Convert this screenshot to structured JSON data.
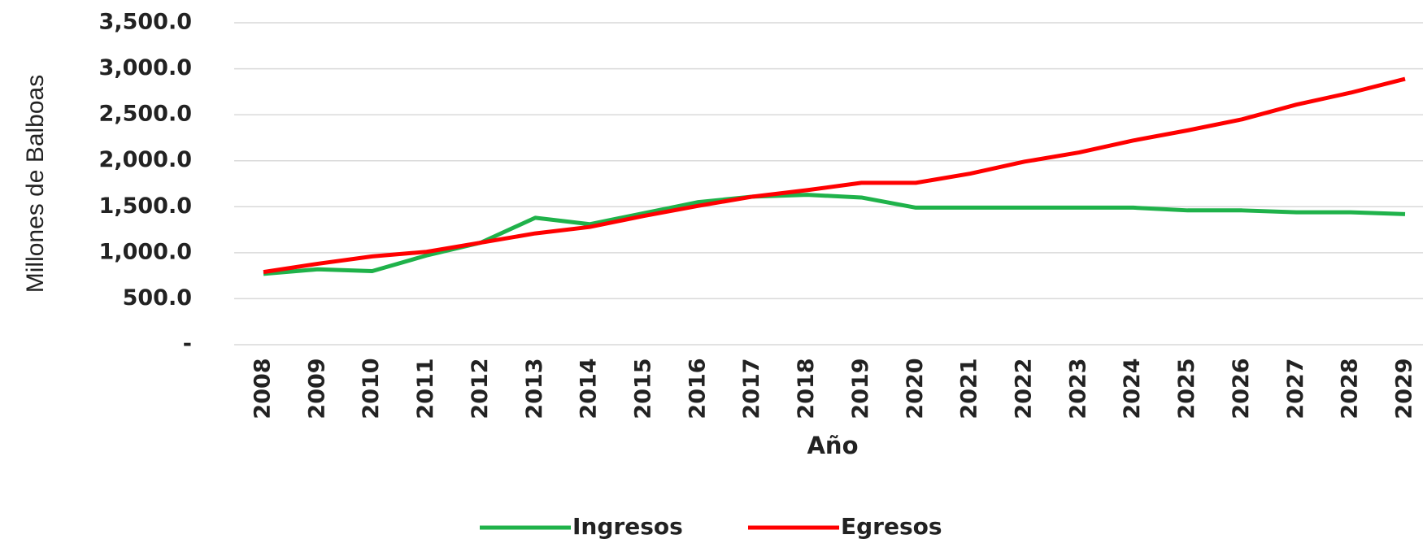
{
  "chart_data": {
    "type": "line",
    "y_axis_label": "Millones de Balboas",
    "x_axis_label": "Año",
    "categories": [
      "2008",
      "2009",
      "2010",
      "2011",
      "2012",
      "2013",
      "2014",
      "2015",
      "2016",
      "2017",
      "2018",
      "2019",
      "2020",
      "2021",
      "2022",
      "2023",
      "2024",
      "2025",
      "2026",
      "2027",
      "2028",
      "2029"
    ],
    "series": [
      {
        "name": "Ingresos",
        "color": "#1fb24a",
        "values": [
          770,
          820,
          800,
          970,
          1110,
          1380,
          1310,
          1430,
          1550,
          1610,
          1630,
          1600,
          1490,
          1490,
          1490,
          1490,
          1490,
          1460,
          1460,
          1440,
          1440,
          1420
        ]
      },
      {
        "name": "Egresos",
        "color": "#ff0000",
        "values": [
          790,
          880,
          960,
          1010,
          1110,
          1210,
          1280,
          1400,
          1510,
          1610,
          1680,
          1760,
          1760,
          1860,
          1990,
          2090,
          2220,
          2330,
          2450,
          2610,
          2740,
          2890
        ]
      }
    ],
    "ylim": [
      0,
      3500
    ],
    "yticks": [
      {
        "value": 0,
        "label": "-"
      },
      {
        "value": 500,
        "label": "500.0"
      },
      {
        "value": 1000,
        "label": "1,000.0"
      },
      {
        "value": 1500,
        "label": "1,500.0"
      },
      {
        "value": 2000,
        "label": "2,000.0"
      },
      {
        "value": 2500,
        "label": "2,500.0"
      },
      {
        "value": 3000,
        "label": "3,000.0"
      },
      {
        "value": 3500,
        "label": "3,500.0"
      }
    ],
    "grid": true,
    "legend": "bottom"
  }
}
